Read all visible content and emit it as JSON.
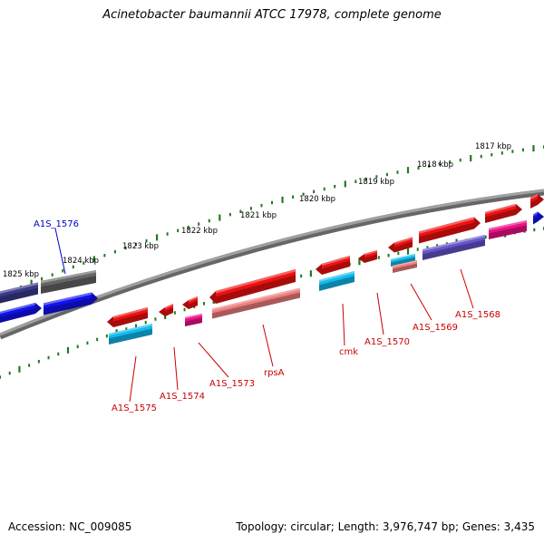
{
  "title": "Acinetobacter baumannii ATCC 17978, complete genome",
  "footer": {
    "accession": "Accession: NC_009085",
    "summary": "Topology: circular; Length: 3,976,747 bp; Genes: 3,435"
  },
  "ruler_labels": [
    {
      "text": "1817 kbp"
    },
    {
      "text": "1818 kbp"
    },
    {
      "text": "1819 kbp"
    },
    {
      "text": "1820 kbp"
    },
    {
      "text": "1821 kbp"
    },
    {
      "text": "1822 kbp"
    },
    {
      "text": "1823 kbp"
    },
    {
      "text": "1824 kbp"
    },
    {
      "text": "1825 kbp"
    }
  ],
  "gene_labels": [
    {
      "text": "A1S_1576",
      "color": "#0000cc"
    },
    {
      "text": "A1S_1575",
      "color": "#cc0000"
    },
    {
      "text": "A1S_1574",
      "color": "#cc0000"
    },
    {
      "text": "A1S_1573",
      "color": "#cc0000"
    },
    {
      "text": "rpsA",
      "color": "#cc0000"
    },
    {
      "text": "cmk",
      "color": "#cc0000"
    },
    {
      "text": "A1S_1570",
      "color": "#cc0000"
    },
    {
      "text": "A1S_1569",
      "color": "#cc0000"
    },
    {
      "text": "A1S_1568",
      "color": "#cc0000"
    }
  ],
  "colors": {
    "backbone": "#808080",
    "tick": "#1e7a1e",
    "red_feature": "#ee1111",
    "pink_feature": "#f08080",
    "cyan_feature": "#11bbee",
    "magenta_feature": "#ee1188",
    "purple_feature": "#6655cc",
    "navy_feature": "#3a3a8a",
    "blue_feature": "#1111ee",
    "gray_feature": "#666666"
  }
}
